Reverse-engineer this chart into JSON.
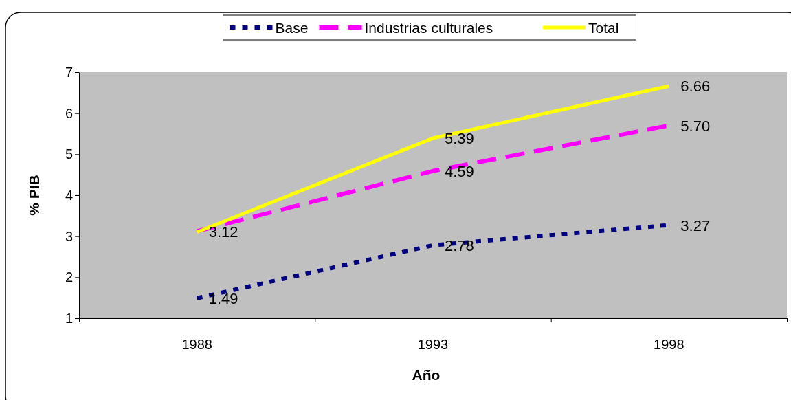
{
  "chart_data": {
    "type": "line",
    "xlabel": "Año",
    "ylabel": "% PIB",
    "categories": [
      "1988",
      "1993",
      "1998"
    ],
    "series": [
      {
        "name": "Base",
        "color": "#000080",
        "line_style": "dotted",
        "values": [
          1.49,
          2.78,
          3.27
        ],
        "value_labels": [
          "1.49",
          "2.78",
          "3.27"
        ]
      },
      {
        "name": "Industrias culturales",
        "color": "#ff00ff",
        "line_style": "dashed",
        "values": [
          3.12,
          4.59,
          5.7
        ],
        "value_labels": [
          "3.12",
          "4.59",
          "5.70"
        ]
      },
      {
        "name": "Total",
        "color": "#ffff00",
        "line_style": "solid",
        "values": [
          3.1,
          5.39,
          6.66
        ],
        "value_labels": [
          null,
          "5.39",
          "6.66"
        ]
      }
    ],
    "ylim": [
      1,
      7
    ],
    "yticks": [
      1,
      2,
      3,
      4,
      5,
      6,
      7
    ],
    "grid": false,
    "legend": "top",
    "marker": "none"
  }
}
